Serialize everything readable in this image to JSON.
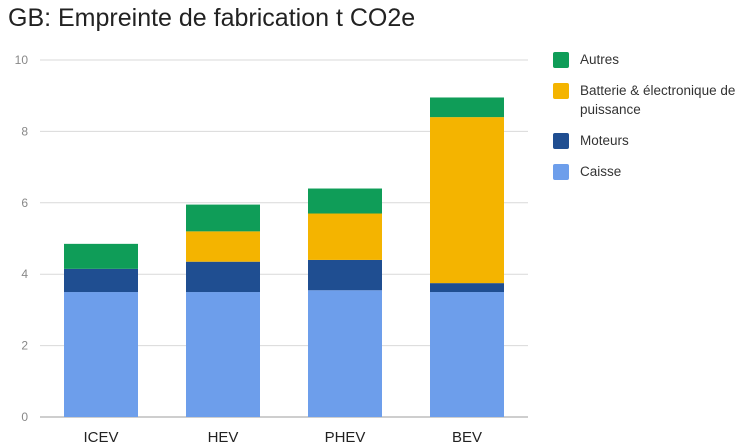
{
  "chart_data": {
    "type": "bar",
    "stacked": true,
    "title": "GB: Empreinte de fabrication t CO2e",
    "xlabel": "",
    "ylabel": "",
    "categories": [
      "ICEV",
      "HEV",
      "PHEV",
      "BEV"
    ],
    "ylim": [
      0,
      10
    ],
    "yticks": [
      0,
      2,
      4,
      6,
      8,
      10
    ],
    "grid": true,
    "legend_position": "right",
    "series": [
      {
        "name": "Caisse",
        "color": "#6d9eeb",
        "values": [
          3.5,
          3.5,
          3.55,
          3.5
        ]
      },
      {
        "name": "Moteurs",
        "color": "#1f4e91",
        "values": [
          0.65,
          0.85,
          0.85,
          0.25
        ]
      },
      {
        "name": "Batterie & électronique de puissance",
        "color": "#f4b400",
        "values": [
          0,
          0.85,
          1.3,
          4.65
        ]
      },
      {
        "name": "Autres",
        "color": "#0f9d58",
        "values": [
          0.7,
          0.75,
          0.7,
          0.55
        ]
      }
    ],
    "legend_order": [
      "Autres",
      "Batterie & électronique de puissance",
      "Moteurs",
      "Caisse"
    ]
  }
}
